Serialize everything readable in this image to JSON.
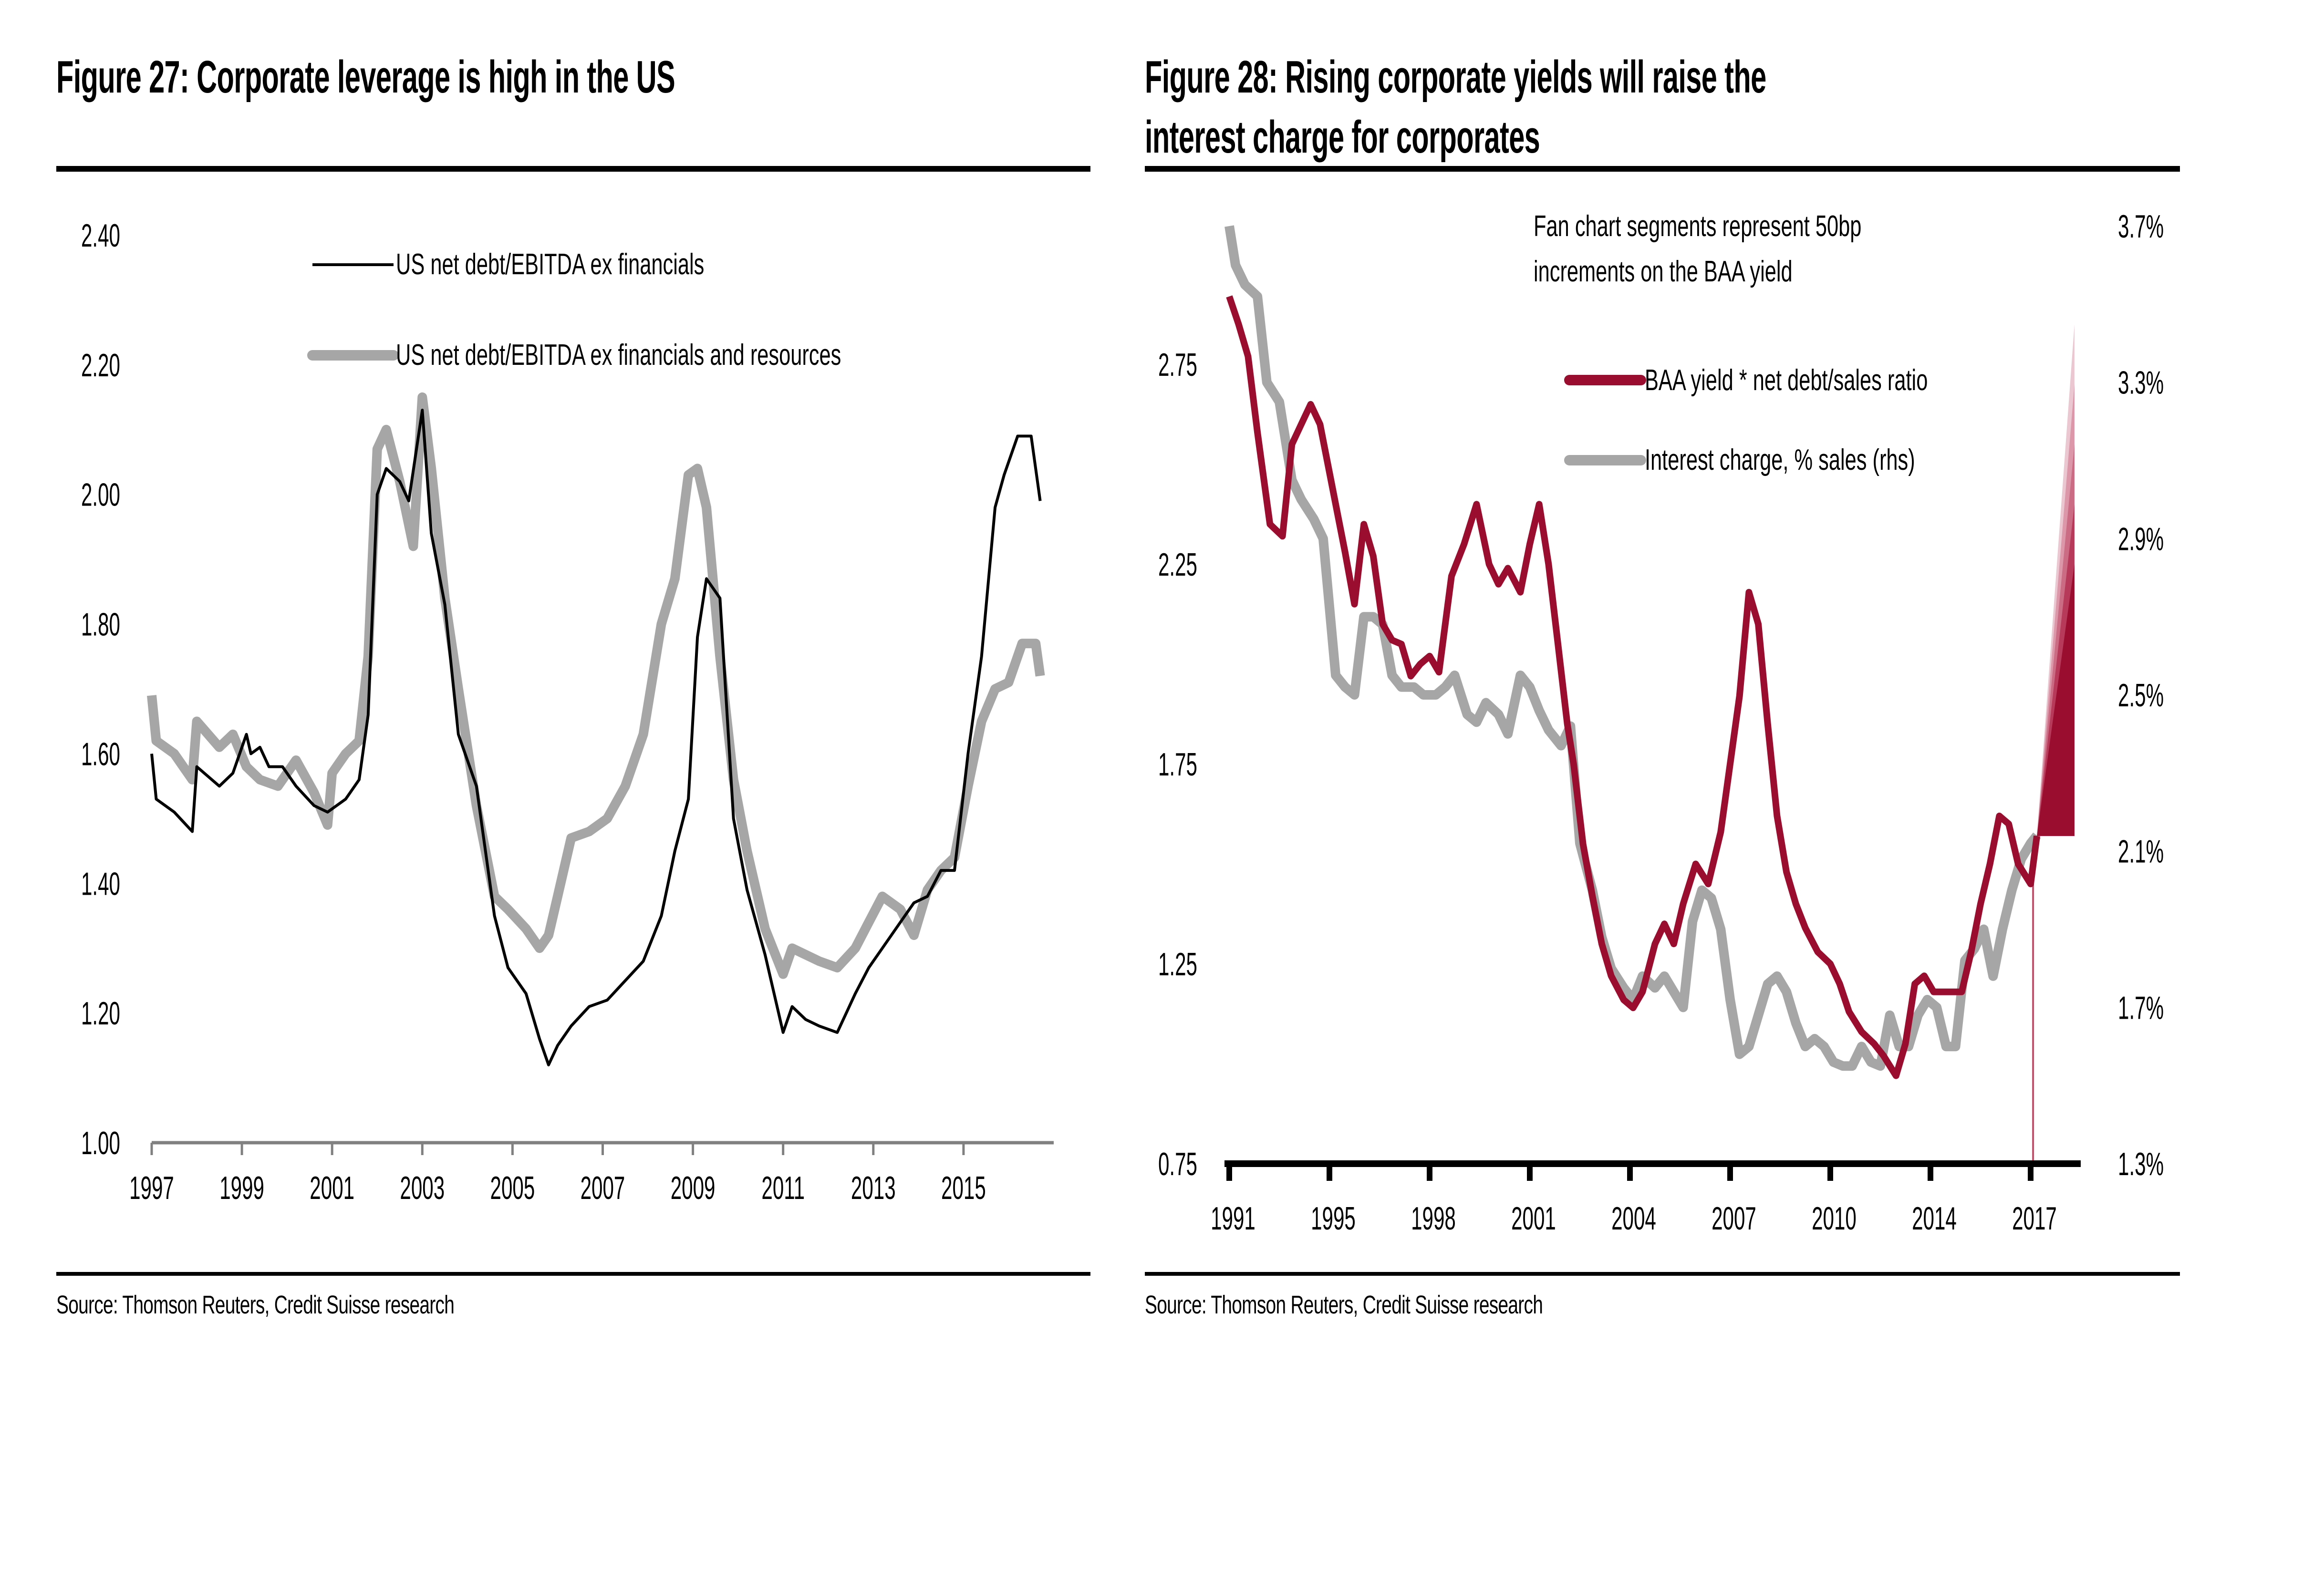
{
  "figures": [
    {
      "title": "Figure 27: Corporate leverage is high in the US",
      "source": "Source: Thomson Reuters, Credit Suisse research"
    },
    {
      "title_line1": "Figure 28: Rising corporate yields will raise the",
      "title_line2": "interest charge for corporates",
      "note_line1": "Fan chart segments represent 50bp",
      "note_line2": "increments on the BAA yield",
      "source": "Source: Thomson Reuters, Credit Suisse research"
    }
  ],
  "colors": {
    "black_series": "#000000",
    "grey_series": "#a6a6a6",
    "red_series": "#9b0d2e",
    "fan_colors": [
      "#9b0d2e",
      "#b83a5a",
      "#cc6b84",
      "#dc97a9",
      "#ebc7d1"
    ]
  },
  "chart_data": [
    {
      "type": "line",
      "title": "Figure 27: Corporate leverage is high in the US",
      "xlabel": "",
      "ylabel": "",
      "xlim": [
        1997,
        2017
      ],
      "ylim": [
        1.0,
        2.4
      ],
      "x_ticks": [
        "1997",
        "1999",
        "2001",
        "2003",
        "2005",
        "2007",
        "2009",
        "2011",
        "2013",
        "2015"
      ],
      "y_ticks": [
        "2.40",
        "2.20",
        "2.00",
        "1.80",
        "1.60",
        "1.40",
        "1.20",
        "1.00"
      ],
      "grid": false,
      "legend_position": "top",
      "series": [
        {
          "name": "US net debt/EBITDA ex financials",
          "color": "#000000",
          "x": [
            1997.0,
            1997.1,
            1997.5,
            1997.9,
            1998.0,
            1998.5,
            1998.8,
            1999.1,
            1999.2,
            1999.4,
            1999.6,
            1999.9,
            2000.2,
            2000.6,
            2000.9,
            2001.3,
            2001.6,
            2001.8,
            2002.0,
            2002.2,
            2002.5,
            2002.7,
            2003.0,
            2003.2,
            2003.5,
            2003.8,
            2004.2,
            2004.6,
            2004.9,
            2005.3,
            2005.6,
            2005.8,
            2006.0,
            2006.3,
            2006.7,
            2007.1,
            2007.5,
            2007.9,
            2008.3,
            2008.6,
            2008.9,
            2009.1,
            2009.3,
            2009.6,
            2009.9,
            2010.2,
            2010.6,
            2011.0,
            2011.2,
            2011.5,
            2011.8,
            2012.2,
            2012.6,
            2012.9,
            2013.2,
            2013.6,
            2013.9,
            2014.2,
            2014.5,
            2014.8,
            2015.1,
            2015.4,
            2015.7,
            2015.9,
            2016.2,
            2016.5,
            2016.7
          ],
          "values": [
            1.6,
            1.53,
            1.51,
            1.48,
            1.58,
            1.55,
            1.57,
            1.63,
            1.6,
            1.61,
            1.58,
            1.58,
            1.55,
            1.52,
            1.51,
            1.53,
            1.56,
            1.66,
            2.0,
            2.04,
            2.02,
            1.99,
            2.13,
            1.94,
            1.83,
            1.63,
            1.55,
            1.35,
            1.27,
            1.23,
            1.16,
            1.12,
            1.15,
            1.18,
            1.21,
            1.22,
            1.25,
            1.28,
            1.35,
            1.45,
            1.53,
            1.78,
            1.87,
            1.84,
            1.5,
            1.39,
            1.29,
            1.17,
            1.21,
            1.19,
            1.18,
            1.17,
            1.23,
            1.27,
            1.3,
            1.34,
            1.37,
            1.38,
            1.42,
            1.42,
            1.6,
            1.75,
            1.98,
            2.03,
            2.09,
            2.09,
            1.99
          ]
        },
        {
          "name": "US net debt/EBITDA ex financials and resources",
          "color": "#a6a6a6",
          "x": [
            1997.0,
            1997.1,
            1997.5,
            1997.9,
            1998.0,
            1998.5,
            1998.8,
            1999.1,
            1999.4,
            1999.8,
            2000.2,
            2000.6,
            2000.9,
            2001.0,
            2001.3,
            2001.6,
            2001.8,
            2002.0,
            2002.2,
            2002.5,
            2002.8,
            2003.0,
            2003.2,
            2003.5,
            2003.8,
            2004.2,
            2004.6,
            2004.9,
            2005.3,
            2005.6,
            2005.8,
            2006.0,
            2006.3,
            2006.7,
            2007.1,
            2007.5,
            2007.9,
            2008.3,
            2008.6,
            2008.9,
            2009.1,
            2009.3,
            2009.6,
            2009.9,
            2010.2,
            2010.6,
            2011.0,
            2011.2,
            2011.5,
            2011.8,
            2012.2,
            2012.6,
            2012.9,
            2013.2,
            2013.6,
            2013.9,
            2014.2,
            2014.5,
            2014.8,
            2015.1,
            2015.4,
            2015.7,
            2016.0,
            2016.3,
            2016.6,
            2016.7
          ],
          "values": [
            1.69,
            1.62,
            1.6,
            1.56,
            1.65,
            1.61,
            1.63,
            1.58,
            1.56,
            1.55,
            1.59,
            1.54,
            1.49,
            1.57,
            1.6,
            1.62,
            1.75,
            2.07,
            2.1,
            2.02,
            1.92,
            2.15,
            2.04,
            1.84,
            1.7,
            1.52,
            1.38,
            1.36,
            1.33,
            1.3,
            1.32,
            1.38,
            1.47,
            1.48,
            1.5,
            1.55,
            1.63,
            1.8,
            1.87,
            2.03,
            2.04,
            1.98,
            1.75,
            1.56,
            1.45,
            1.33,
            1.26,
            1.3,
            1.29,
            1.28,
            1.27,
            1.3,
            1.34,
            1.38,
            1.36,
            1.32,
            1.39,
            1.42,
            1.44,
            1.55,
            1.65,
            1.7,
            1.71,
            1.77,
            1.77,
            1.72
          ]
        }
      ]
    },
    {
      "type": "line",
      "title": "Figure 28: Rising corporate yields will raise the interest charge for corporates",
      "annotation": "Fan chart segments represent 50bp increments on the BAA yield",
      "xlabel": "",
      "ylabel": "",
      "xlim": [
        1991,
        2018.2
      ],
      "ylim": [
        0.75,
        3.0
      ],
      "ylim_right": [
        1.3,
        3.7
      ],
      "x_ticks": [
        "1991",
        "1995",
        "1998",
        "2001",
        "2004",
        "2007",
        "2010",
        "2014",
        "2017"
      ],
      "x_tick_values": [
        1991,
        1994.2,
        1997.4,
        2000.6,
        2003.8,
        2007.0,
        2010.2,
        2013.4,
        2016.6
      ],
      "y_ticks": [
        "2.75",
        "2.25",
        "1.75",
        "1.25",
        "0.75"
      ],
      "y_ticks_right": [
        "3.7%",
        "3.3%",
        "2.9%",
        "2.5%",
        "2.1%",
        "1.7%",
        "1.3%"
      ],
      "grid": false,
      "legend_position": "top-center",
      "series": [
        {
          "name": "BAA yield * net debt/sales ratio",
          "axis": "left",
          "color": "#9b0d2e",
          "x": [
            1991.0,
            1991.3,
            1991.6,
            1991.9,
            1992.3,
            1992.7,
            1993.0,
            1993.3,
            1993.6,
            1993.9,
            1994.4,
            1994.7,
            1995.0,
            1995.3,
            1995.6,
            1995.9,
            1996.2,
            1996.5,
            1996.8,
            1997.1,
            1997.4,
            1997.7,
            1998.1,
            1998.5,
            1998.9,
            1999.3,
            1999.6,
            1999.9,
            2000.3,
            2000.6,
            2000.9,
            2001.2,
            2001.5,
            2001.8,
            2002.0,
            2002.3,
            2002.6,
            2002.9,
            2003.2,
            2003.6,
            2003.9,
            2004.2,
            2004.6,
            2004.9,
            2005.2,
            2005.5,
            2005.9,
            2006.3,
            2006.7,
            2007.0,
            2007.3,
            2007.6,
            2007.9,
            2008.2,
            2008.5,
            2008.8,
            2009.1,
            2009.4,
            2009.8,
            2010.2,
            2010.5,
            2010.8,
            2011.2,
            2011.6,
            2011.9,
            2012.3,
            2012.6,
            2012.9,
            2013.2,
            2013.5,
            2013.8,
            2014.1,
            2014.4,
            2014.7,
            2015.0,
            2015.3,
            2015.6,
            2015.9,
            2016.2,
            2016.6,
            2016.8
          ],
          "values": [
            2.92,
            2.85,
            2.77,
            2.58,
            2.35,
            2.32,
            2.55,
            2.6,
            2.65,
            2.6,
            2.4,
            2.28,
            2.15,
            2.35,
            2.27,
            2.1,
            2.06,
            2.05,
            1.97,
            2.0,
            2.02,
            1.98,
            2.22,
            2.3,
            2.4,
            2.25,
            2.2,
            2.24,
            2.18,
            2.3,
            2.4,
            2.25,
            2.05,
            1.85,
            1.75,
            1.55,
            1.42,
            1.3,
            1.22,
            1.16,
            1.14,
            1.18,
            1.3,
            1.35,
            1.3,
            1.4,
            1.5,
            1.45,
            1.58,
            1.75,
            1.92,
            2.18,
            2.1,
            1.85,
            1.62,
            1.48,
            1.4,
            1.34,
            1.28,
            1.25,
            1.2,
            1.13,
            1.08,
            1.05,
            1.02,
            0.97,
            1.05,
            1.2,
            1.22,
            1.18,
            1.18,
            1.18,
            1.18,
            1.28,
            1.4,
            1.5,
            1.62,
            1.6,
            1.5,
            1.45,
            1.57
          ]
        },
        {
          "name": "Interest charge, % sales (rhs)",
          "axis": "right",
          "color": "#a6a6a6",
          "x": [
            1991.0,
            1991.2,
            1991.5,
            1991.9,
            1992.2,
            1992.6,
            1993.0,
            1993.3,
            1993.7,
            1994.0,
            1994.4,
            1994.7,
            1995.0,
            1995.3,
            1995.6,
            1995.9,
            1996.2,
            1996.5,
            1996.9,
            1997.2,
            1997.6,
            1997.9,
            1998.2,
            1998.6,
            1998.9,
            1999.2,
            1999.6,
            1999.9,
            2000.3,
            2000.6,
            2000.9,
            2001.2,
            2001.6,
            2001.9,
            2002.2,
            2002.6,
            2002.9,
            2003.2,
            2003.6,
            2003.9,
            2004.2,
            2004.6,
            2004.9,
            2005.2,
            2005.5,
            2005.8,
            2006.1,
            2006.4,
            2006.7,
            2007.0,
            2007.3,
            2007.6,
            2007.9,
            2008.2,
            2008.5,
            2008.8,
            2009.1,
            2009.4,
            2009.7,
            2010.0,
            2010.3,
            2010.6,
            2010.9,
            2011.2,
            2011.5,
            2011.8,
            2012.1,
            2012.4,
            2012.7,
            2013.0,
            2013.3,
            2013.6,
            2013.9,
            2014.2,
            2014.5,
            2014.8,
            2015.1,
            2015.4,
            2015.7,
            2016.0,
            2016.3,
            2016.6,
            2016.8
          ],
          "values": [
            3.7,
            3.6,
            3.55,
            3.52,
            3.3,
            3.25,
            3.05,
            3.0,
            2.95,
            2.9,
            2.55,
            2.52,
            2.5,
            2.7,
            2.7,
            2.68,
            2.55,
            2.52,
            2.52,
            2.5,
            2.5,
            2.52,
            2.55,
            2.45,
            2.43,
            2.48,
            2.45,
            2.4,
            2.55,
            2.52,
            2.46,
            2.41,
            2.37,
            2.42,
            2.12,
            2.0,
            1.88,
            1.8,
            1.75,
            1.72,
            1.78,
            1.75,
            1.78,
            1.74,
            1.7,
            1.92,
            2.0,
            1.98,
            1.9,
            1.72,
            1.58,
            1.6,
            1.68,
            1.76,
            1.78,
            1.74,
            1.66,
            1.6,
            1.62,
            1.6,
            1.56,
            1.55,
            1.55,
            1.6,
            1.56,
            1.55,
            1.68,
            1.6,
            1.6,
            1.68,
            1.72,
            1.7,
            1.6,
            1.6,
            1.82,
            1.85,
            1.9,
            1.78,
            1.9,
            2.0,
            2.08,
            2.12,
            2.14
          ]
        }
      ],
      "fan_chart": {
        "start_x": 2016.8,
        "end_x": 2018.0,
        "start_value": 1.57,
        "end_values_left_axis": [
          2.25,
          2.4,
          2.55,
          2.7,
          2.85
        ],
        "segments_bp": [
          50,
          100,
          150,
          200,
          250
        ],
        "floor_value": 1.57
      }
    }
  ]
}
